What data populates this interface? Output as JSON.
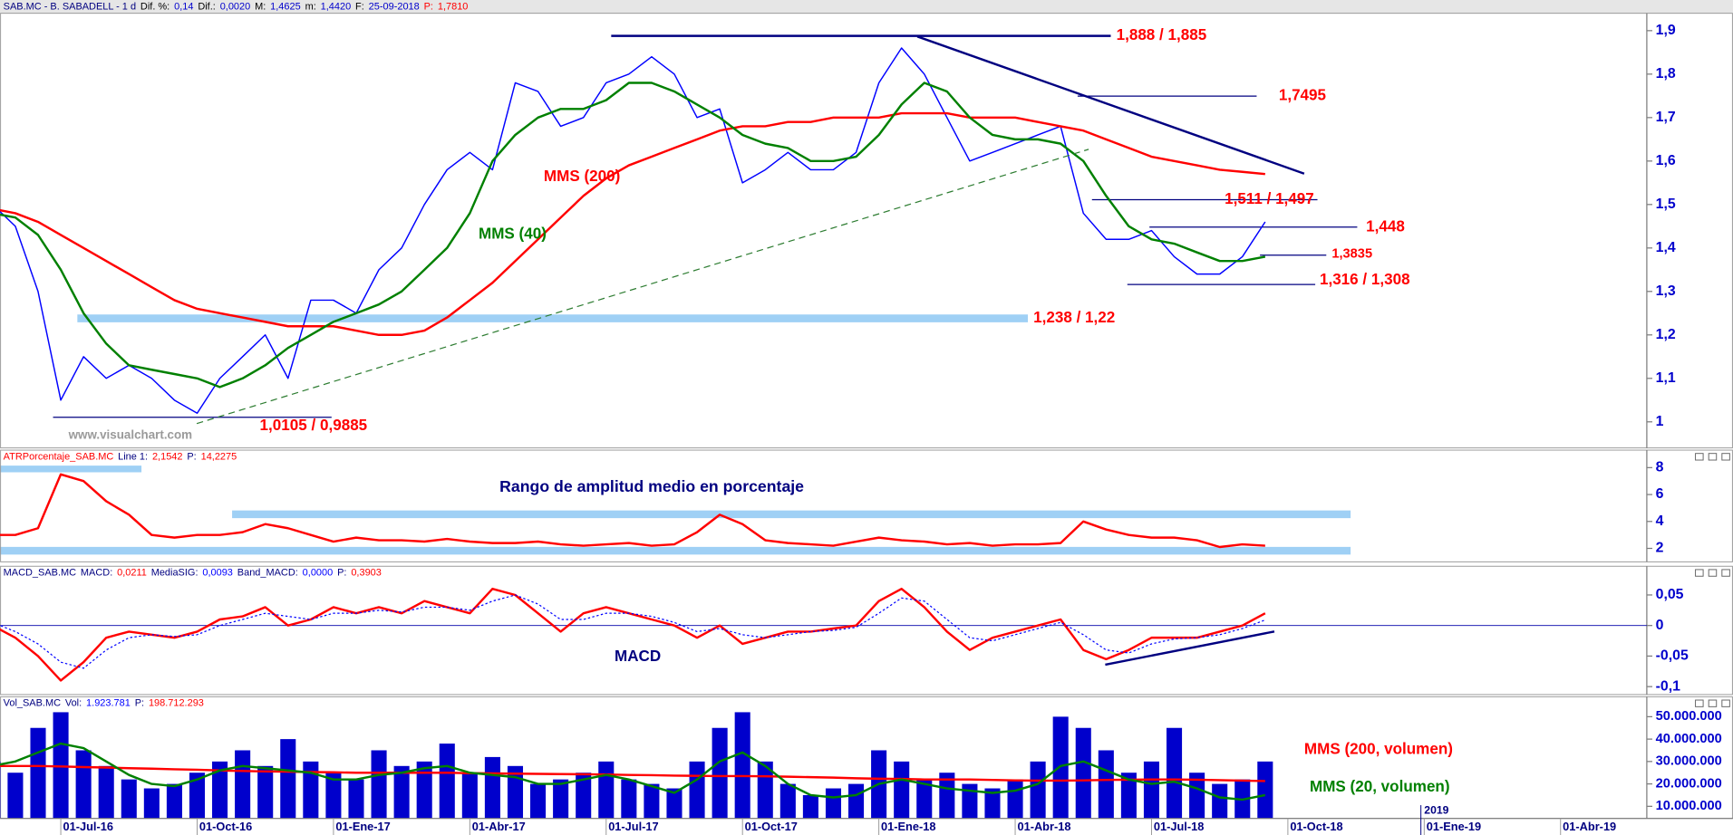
{
  "chart_data": [
    {
      "type": "line",
      "header": [
        {
          "text": "SAB.MC - B. SABADELL - 1 d",
          "color": "#000080"
        },
        {
          "text": "Dif. %:",
          "color": "#000000"
        },
        {
          "text": "0,14",
          "color": "#0000cc"
        },
        {
          "text": "Dif.:",
          "color": "#000000"
        },
        {
          "text": "0,0020",
          "color": "#0000cc"
        },
        {
          "text": "M:",
          "color": "#000000"
        },
        {
          "text": "1,4625",
          "color": "#0000cc"
        },
        {
          "text": "m:",
          "color": "#000000"
        },
        {
          "text": "1,4420",
          "color": "#0000cc"
        },
        {
          "text": "F:",
          "color": "#000000"
        },
        {
          "text": "25-09-2018",
          "color": "#0000cc"
        },
        {
          "text": "P:",
          "color": "#ff0000"
        },
        {
          "text": "1,7810",
          "color": "#ff0000"
        }
      ],
      "ylim": [
        0.94,
        1.94
      ],
      "yticks": [
        {
          "value": 1.9,
          "label": "1,9"
        },
        {
          "value": 1.8,
          "label": "1,8"
        },
        {
          "value": 1.7,
          "label": "1,7"
        },
        {
          "value": 1.6,
          "label": "1,6"
        },
        {
          "value": 1.5,
          "label": "1,5"
        },
        {
          "value": 1.4,
          "label": "1,4"
        },
        {
          "value": 1.3,
          "label": "1,3"
        },
        {
          "value": 1.2,
          "label": "1,2"
        },
        {
          "value": 1.1,
          "label": "1,1"
        },
        1
      ],
      "series": [
        {
          "color": "#0000ff",
          "values": [
            1.5,
            1.45,
            1.3,
            1.05,
            1.15,
            1.1,
            1.13,
            1.1,
            1.05,
            1.02,
            1.1,
            1.15,
            1.2,
            1.1,
            1.28,
            1.28,
            1.25,
            1.35,
            1.4,
            1.5,
            1.58,
            1.62,
            1.58,
            1.78,
            1.76,
            1.68,
            1.7,
            1.78,
            1.8,
            1.84,
            1.8,
            1.7,
            1.72,
            1.55,
            1.58,
            1.62,
            1.58,
            1.58,
            1.62,
            1.78,
            1.86,
            1.8,
            1.7,
            1.6,
            1.62,
            1.64,
            1.66,
            1.68,
            1.48,
            1.42,
            1.42,
            1.44,
            1.38,
            1.34,
            1.34,
            1.38,
            1.46,
            null,
            null,
            null,
            null,
            null,
            null,
            null,
            null,
            null,
            null,
            null,
            null,
            null,
            null,
            null
          ]
        },
        {
          "name": "MMS (200)",
          "color": "#ff0000",
          "values": [
            1.49,
            1.48,
            1.46,
            1.43,
            1.4,
            1.37,
            1.34,
            1.31,
            1.28,
            1.26,
            1.25,
            1.24,
            1.23,
            1.22,
            1.22,
            1.22,
            1.21,
            1.2,
            1.2,
            1.21,
            1.24,
            1.28,
            1.32,
            1.37,
            1.42,
            1.47,
            1.52,
            1.56,
            1.59,
            1.61,
            1.63,
            1.65,
            1.67,
            1.68,
            1.68,
            1.69,
            1.69,
            1.7,
            1.7,
            1.7,
            1.71,
            1.71,
            1.71,
            1.7,
            1.7,
            1.7,
            1.69,
            1.68,
            1.67,
            1.65,
            1.63,
            1.61,
            1.6,
            1.59,
            1.58,
            1.575,
            1.57,
            null,
            null,
            null,
            null,
            null,
            null,
            null,
            null,
            null,
            null,
            null,
            null,
            null,
            null,
            null
          ]
        },
        {
          "name": "MMS (40)",
          "color": "#008000",
          "values": [
            1.48,
            1.47,
            1.43,
            1.35,
            1.25,
            1.18,
            1.13,
            1.12,
            1.11,
            1.1,
            1.08,
            1.1,
            1.13,
            1.17,
            1.2,
            1.23,
            1.25,
            1.27,
            1.3,
            1.35,
            1.4,
            1.48,
            1.6,
            1.66,
            1.7,
            1.72,
            1.72,
            1.74,
            1.78,
            1.78,
            1.76,
            1.73,
            1.7,
            1.66,
            1.64,
            1.63,
            1.6,
            1.6,
            1.61,
            1.66,
            1.73,
            1.78,
            1.76,
            1.7,
            1.66,
            1.65,
            1.65,
            1.64,
            1.6,
            1.52,
            1.45,
            1.42,
            1.41,
            1.39,
            1.37,
            1.37,
            1.38,
            null,
            null,
            null,
            null,
            null,
            null,
            null,
            null,
            null,
            null,
            null,
            null,
            null,
            null,
            null
          ]
        }
      ],
      "levels": [
        {
          "value": 1.888,
          "label": "1,888 / 1,885"
        },
        {
          "value": 1.7495,
          "label": "1,7495"
        },
        {
          "value": 1.511,
          "label": "1,511 / 1,497"
        },
        {
          "value": 1.448,
          "label": "1,448"
        },
        {
          "value": 1.3835,
          "label": "1,3835"
        },
        {
          "value": 1.316,
          "label": "1,316 / 1,308"
        },
        {
          "value": 1.238,
          "label": "1,238 / 1,22"
        },
        {
          "value": 1.0105,
          "label": "1,0105 / 0,9885"
        }
      ],
      "annotations": [
        {
          "text": "www.visualchart.com",
          "color": "#9a9a9a"
        }
      ]
    },
    {
      "type": "line",
      "header": [
        {
          "text": "ATRPorcentaje_SAB.MC",
          "color": "#ff0000"
        },
        {
          "text": "Line 1:",
          "color": "#000080"
        },
        {
          "text": "2,1542",
          "color": "#ff0000"
        },
        {
          "text": "P:",
          "color": "#000080"
        },
        {
          "text": "14,2275",
          "color": "#ff0000"
        }
      ],
      "ylim": [
        1.0,
        9.3
      ],
      "yticks": [
        8,
        6,
        4,
        2
      ],
      "series": [
        {
          "color": "#ff0000",
          "values": [
            3,
            3,
            3.5,
            7.5,
            7,
            5.5,
            4.5,
            3,
            2.8,
            3,
            3,
            3.2,
            3.8,
            3.5,
            3,
            2.5,
            2.8,
            2.6,
            2.6,
            2.5,
            2.7,
            2.5,
            2.4,
            2.4,
            2.5,
            2.3,
            2.2,
            2.3,
            2.4,
            2.2,
            2.3,
            3.2,
            4.5,
            3.8,
            2.6,
            2.4,
            2.3,
            2.2,
            2.5,
            2.8,
            2.6,
            2.5,
            2.3,
            2.4,
            2.2,
            2.3,
            2.3,
            2.4,
            4.0,
            3.4,
            3.0,
            2.8,
            2.8,
            2.6,
            2.1,
            2.3,
            2.2,
            null,
            null,
            null,
            null,
            null,
            null,
            null,
            null,
            null,
            null,
            null,
            null,
            null,
            null,
            null
          ]
        }
      ],
      "annotations": [
        {
          "text": "Rango de amplitud medio en porcentaje",
          "color": "#000080"
        }
      ]
    },
    {
      "type": "line",
      "header": [
        {
          "text": "MACD_SAB.MC",
          "color": "#000080"
        },
        {
          "text": "MACD:",
          "color": "#000080"
        },
        {
          "text": "0,0211",
          "color": "#ff0000"
        },
        {
          "text": "MediaSIG:",
          "color": "#000080"
        },
        {
          "text": "0,0093",
          "color": "#0000ff"
        },
        {
          "text": "Band_MACD:",
          "color": "#000080"
        },
        {
          "text": "0,0000",
          "color": "#0000ff"
        },
        {
          "text": "P:",
          "color": "#000080"
        },
        {
          "text": "0,3903",
          "color": "#ff0000"
        }
      ],
      "ylim": [
        -0.113,
        0.097
      ],
      "yticks": [
        {
          "value": 0.05,
          "label": "0,05"
        },
        0,
        {
          "value": -0.05,
          "label": "-0,05"
        },
        {
          "value": -0.1,
          "label": "-0,1"
        }
      ],
      "zero_line": true,
      "series": [
        {
          "name": "MACD",
          "color": "#ff0000",
          "values": [
            0.0,
            -0.02,
            -0.05,
            -0.09,
            -0.06,
            -0.02,
            -0.01,
            -0.015,
            -0.02,
            -0.01,
            0.01,
            0.015,
            0.03,
            0.0,
            0.01,
            0.03,
            0.02,
            0.03,
            0.02,
            0.04,
            0.03,
            0.02,
            0.06,
            0.05,
            0.02,
            -0.01,
            0.02,
            0.03,
            0.02,
            0.01,
            0.0,
            -0.02,
            0.0,
            -0.03,
            -0.02,
            -0.01,
            -0.01,
            -0.005,
            0.0,
            0.04,
            0.06,
            0.03,
            -0.01,
            -0.04,
            -0.02,
            -0.01,
            0.0,
            0.01,
            -0.04,
            -0.055,
            -0.04,
            -0.02,
            -0.02,
            -0.02,
            -0.01,
            0.0,
            0.02,
            null,
            null,
            null,
            null,
            null,
            null,
            null,
            null,
            null,
            null,
            null,
            null,
            null,
            null,
            null
          ]
        },
        {
          "color": "#0000ff",
          "dash": true,
          "values": [
            0.005,
            -0.01,
            -0.03,
            -0.06,
            -0.07,
            -0.04,
            -0.02,
            -0.015,
            -0.018,
            -0.015,
            0.0,
            0.01,
            0.02,
            0.015,
            0.01,
            0.02,
            0.02,
            0.025,
            0.022,
            0.03,
            0.03,
            0.025,
            0.04,
            0.05,
            0.035,
            0.01,
            0.01,
            0.02,
            0.02,
            0.015,
            0.005,
            -0.01,
            -0.005,
            -0.015,
            -0.02,
            -0.015,
            -0.01,
            -0.008,
            -0.003,
            0.02,
            0.045,
            0.04,
            0.01,
            -0.02,
            -0.025,
            -0.015,
            -0.005,
            0.005,
            -0.015,
            -0.04,
            -0.045,
            -0.03,
            -0.022,
            -0.02,
            -0.015,
            -0.005,
            0.009,
            null,
            null,
            null,
            null,
            null,
            null,
            null,
            null,
            null,
            null,
            null,
            null,
            null,
            null,
            null
          ]
        }
      ]
    },
    {
      "type": "bar",
      "header": [
        {
          "text": "Vol_SAB.MC",
          "color": "#000080"
        },
        {
          "text": "Vol:",
          "color": "#000080"
        },
        {
          "text": "1.923.781",
          "color": "#0000ff"
        },
        {
          "text": "P:",
          "color": "#000080"
        },
        {
          "text": "198.712.293",
          "color": "#ff0000"
        }
      ],
      "categories": [
        null,
        null,
        null,
        "01-Jul-16",
        null,
        null,
        null,
        null,
        null,
        "01-Oct-16",
        null,
        null,
        null,
        null,
        null,
        "01-Ene-17",
        null,
        null,
        null,
        null,
        null,
        "01-Abr-17",
        null,
        null,
        null,
        null,
        null,
        "01-Jul-17",
        null,
        null,
        null,
        null,
        null,
        "01-Oct-17",
        null,
        null,
        null,
        null,
        null,
        "01-Ene-18",
        null,
        null,
        null,
        null,
        null,
        "01-Abr-18",
        null,
        null,
        null,
        null,
        null,
        "01-Jul-18",
        null,
        null,
        null,
        null,
        null,
        "01-Oct-18",
        null,
        null,
        null,
        null,
        null,
        "01-Ene-19",
        null,
        null,
        null,
        null,
        null,
        "01-Abr-19",
        null,
        null
      ],
      "year_label": "2019",
      "ylim": [
        4600000,
        58900000
      ],
      "yticks": [
        {
          "value": 50000000,
          "label": "50.000.000"
        },
        {
          "value": 40000000,
          "label": "40.000.000"
        },
        {
          "value": 30000000,
          "label": "30.000.000"
        },
        {
          "value": 20000000,
          "label": "20.000.000"
        },
        {
          "value": 10000000,
          "label": "10.000.000"
        }
      ],
      "series": [
        {
          "type": "bar",
          "color": "#0000cc",
          "values": [
            30000000,
            25000000,
            45000000,
            52000000,
            35000000,
            28000000,
            22000000,
            18000000,
            20000000,
            25000000,
            30000000,
            35000000,
            28000000,
            40000000,
            30000000,
            25000000,
            22000000,
            35000000,
            28000000,
            30000000,
            38000000,
            25000000,
            32000000,
            28000000,
            20000000,
            22000000,
            25000000,
            30000000,
            22000000,
            20000000,
            18000000,
            30000000,
            45000000,
            52000000,
            30000000,
            20000000,
            15000000,
            18000000,
            20000000,
            35000000,
            30000000,
            22000000,
            25000000,
            20000000,
            18000000,
            22000000,
            30000000,
            50000000,
            45000000,
            35000000,
            25000000,
            30000000,
            45000000,
            25000000,
            20000000,
            22000000,
            30000000,
            null,
            null,
            null,
            null,
            null,
            null,
            null,
            null,
            null,
            null,
            null,
            null,
            null,
            null,
            null
          ]
        },
        {
          "type": "line",
          "name": "MMS (200, volumen)",
          "color": "#ff0000",
          "values": [
            28000000,
            28000000,
            28000000,
            27800000,
            27500000,
            27300000,
            27000000,
            26800000,
            26500000,
            26300000,
            26000000,
            25800000,
            25600000,
            25500000,
            25300000,
            25200000,
            25000000,
            25000000,
            25000000,
            25000000,
            25000000,
            24800000,
            24700000,
            24600000,
            24500000,
            24400000,
            24300000,
            24200000,
            24000000,
            23900000,
            23700000,
            23600000,
            23500000,
            23500000,
            23400000,
            23200000,
            23000000,
            22800000,
            22500000,
            22300000,
            22200000,
            22000000,
            22000000,
            22000000,
            21800000,
            21600000,
            21500000,
            21500000,
            21600000,
            21800000,
            21900000,
            22000000,
            22000000,
            21900000,
            21700000,
            21500000,
            21300000,
            null,
            null,
            null,
            null,
            null,
            null,
            null,
            null,
            null,
            null,
            null,
            null,
            null,
            null,
            null
          ]
        },
        {
          "type": "line",
          "name": "MMS (20, volumen)",
          "color": "#008000",
          "values": [
            28000000,
            30000000,
            34000000,
            38000000,
            36000000,
            30000000,
            24000000,
            20000000,
            19000000,
            22000000,
            26000000,
            28000000,
            27000000,
            26000000,
            25000000,
            22000000,
            22000000,
            24000000,
            25000000,
            27000000,
            28000000,
            25000000,
            24000000,
            23000000,
            20000000,
            20000000,
            22000000,
            24000000,
            22000000,
            19000000,
            16000000,
            22000000,
            30000000,
            34000000,
            28000000,
            20000000,
            15000000,
            14000000,
            15000000,
            20000000,
            22000000,
            20000000,
            18000000,
            17000000,
            16000000,
            17000000,
            20000000,
            28000000,
            30000000,
            26000000,
            22000000,
            20000000,
            21000000,
            18000000,
            14000000,
            13000000,
            15000000,
            null,
            null,
            null,
            null,
            null,
            null,
            null,
            null,
            null,
            null,
            null,
            null,
            null,
            null,
            null
          ]
        }
      ]
    }
  ]
}
